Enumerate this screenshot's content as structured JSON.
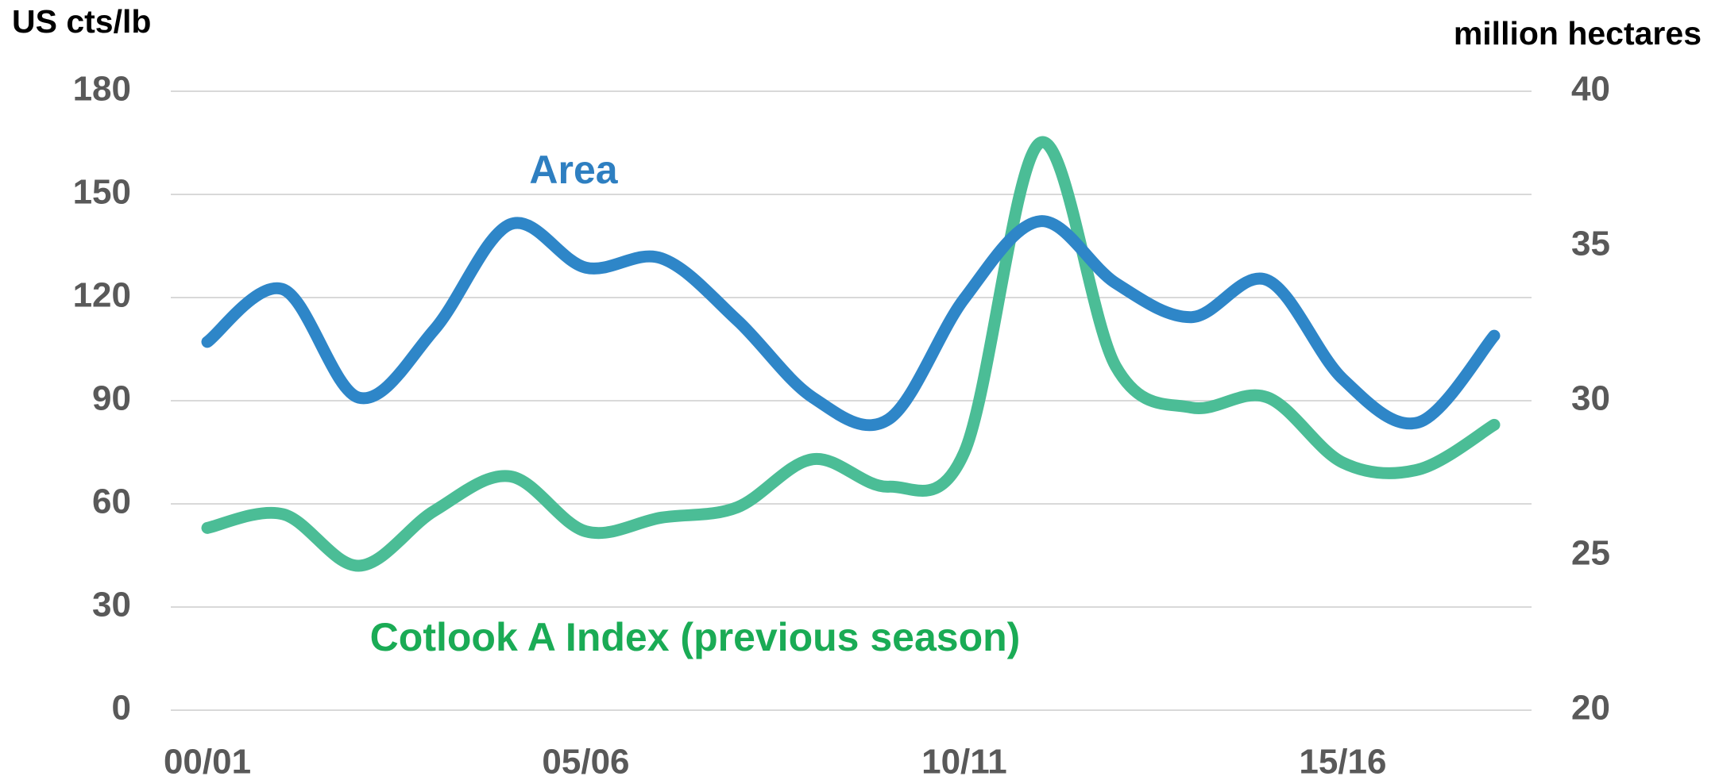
{
  "chart_data": {
    "type": "line",
    "y_label": "US cts/lb",
    "y2_label": "million hectares",
    "categories": [
      "00/01",
      null,
      null,
      null,
      null,
      "05/06",
      null,
      null,
      null,
      null,
      "10/11",
      null,
      null,
      null,
      null,
      "15/16",
      null,
      null
    ],
    "series": [
      {
        "name": "Area",
        "color": "#2e86c8",
        "axis": "y2",
        "values": [
          31.9,
          33.6,
          30.1,
          32.3,
          35.7,
          34.3,
          34.6,
          32.6,
          30.1,
          29.4,
          33.3,
          35.8,
          33.8,
          32.7,
          33.9,
          30.7,
          29.3,
          32.1
        ]
      },
      {
        "name": "Cotlook A Index (previous season)",
        "color": "#4bbd96",
        "values": [
          53,
          57,
          42,
          58,
          68,
          52,
          56,
          59,
          73,
          65,
          75,
          165,
          100,
          88,
          91,
          72,
          70,
          83
        ]
      }
    ],
    "ylim": [
      0,
      180
    ],
    "yticks": [
      0,
      30,
      60,
      90,
      120,
      150,
      180
    ],
    "y2lim": [
      20,
      40
    ],
    "y2ticks": [
      20,
      25,
      30,
      35,
      40
    ],
    "grid": true
  }
}
